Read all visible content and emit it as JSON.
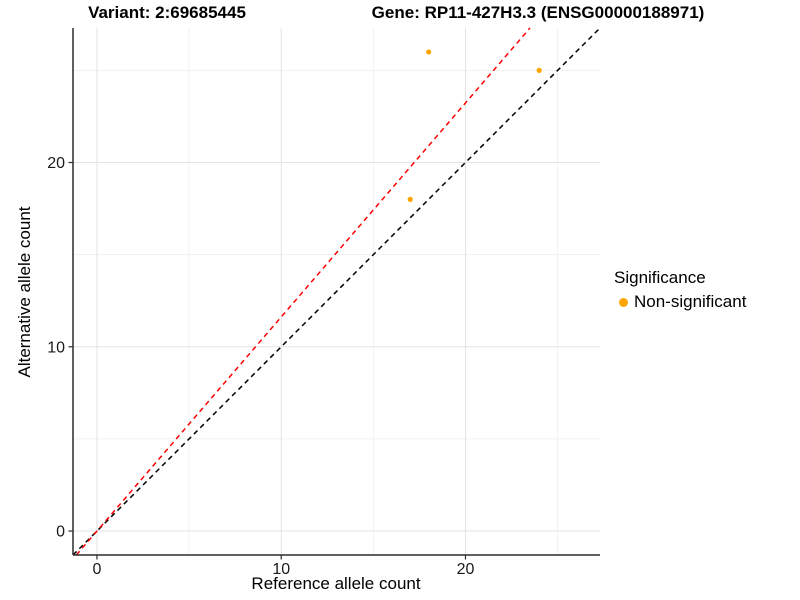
{
  "chart_data": {
    "type": "scatter",
    "title_left": "Variant: 2:69685445",
    "title_right": "Gene: RP11-427H3.3 (ENSG00000188971)",
    "xlabel": "Reference allele count",
    "ylabel": "Alternative allele count",
    "xlim": [
      -1.3,
      27.3
    ],
    "ylim": [
      -1.3,
      27.3
    ],
    "x_ticks": [
      0,
      10,
      20
    ],
    "y_ticks": [
      0,
      10,
      20
    ],
    "x_minor_ticks": [
      5,
      15,
      25
    ],
    "y_minor_ticks": [
      5,
      15,
      25
    ],
    "grid_major_color": "#E3E3E3",
    "grid_minor_color": "#F1F1F1",
    "axis_color": "#2b2b2b",
    "tick_label_color": "#1a1a1a",
    "point_color": "#FFA500",
    "point_radius": 2.6,
    "points": [
      {
        "x": 17,
        "y": 18
      },
      {
        "x": 18,
        "y": 26
      },
      {
        "x": 24,
        "y": 25
      }
    ],
    "lines": [
      {
        "name": "identity-line",
        "color": "#000000",
        "x1": -1.3,
        "y1": -1.3,
        "x2": 27.3,
        "y2": 27.3
      },
      {
        "name": "ratio-line",
        "color": "#FF0000",
        "x1": -1.12,
        "y1": -1.3,
        "x2": 23.5,
        "y2": 27.3
      }
    ],
    "legend": {
      "title": "Significance",
      "items": [
        {
          "label": "Non-significant",
          "color": "#FFA500"
        }
      ]
    }
  }
}
